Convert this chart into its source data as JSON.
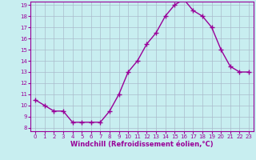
{
  "x": [
    0,
    1,
    2,
    3,
    4,
    5,
    6,
    7,
    8,
    9,
    10,
    11,
    12,
    13,
    14,
    15,
    16,
    17,
    18,
    19,
    20,
    21,
    22,
    23
  ],
  "y": [
    10.5,
    10.0,
    9.5,
    9.5,
    8.5,
    8.5,
    8.5,
    8.5,
    9.5,
    11.0,
    13.0,
    14.0,
    15.5,
    16.5,
    18.0,
    19.0,
    19.5,
    18.5,
    18.0,
    17.0,
    15.0,
    13.5,
    13.0,
    13.0
  ],
  "line_color": "#990099",
  "marker": "+",
  "marker_color": "#990099",
  "xlabel": "Windchill (Refroidissement éolien,°C)",
  "xlabel_fontsize": 6,
  "xlim_min": -0.5,
  "xlim_max": 23.5,
  "ylim_min": 7.7,
  "ylim_max": 19.3,
  "yticks": [
    8,
    9,
    10,
    11,
    12,
    13,
    14,
    15,
    16,
    17,
    18,
    19
  ],
  "xticks": [
    0,
    1,
    2,
    3,
    4,
    5,
    6,
    7,
    8,
    9,
    10,
    11,
    12,
    13,
    14,
    15,
    16,
    17,
    18,
    19,
    20,
    21,
    22,
    23
  ],
  "background_color": "#c8eef0",
  "grid_color": "#aabbcc",
  "tick_fontsize": 5,
  "line_width": 1.0,
  "marker_size": 4
}
